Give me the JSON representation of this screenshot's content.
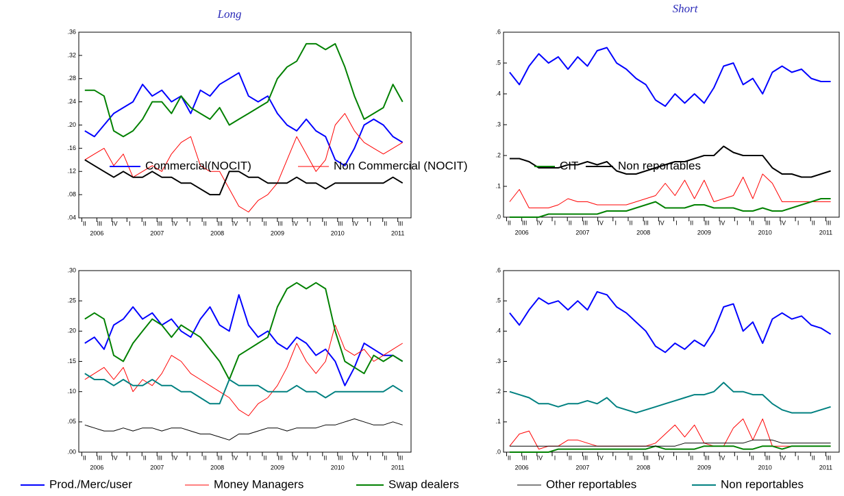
{
  "time_axis": {
    "x": [
      2006.3,
      2006.46,
      2006.62,
      2006.78,
      2006.94,
      2007.1,
      2007.26,
      2007.42,
      2007.58,
      2007.74,
      2007.9,
      2008.06,
      2008.22,
      2008.38,
      2008.54,
      2008.7,
      2008.86,
      2009.02,
      2009.18,
      2009.34,
      2009.5,
      2009.66,
      2009.82,
      2009.98,
      2010.14,
      2010.3,
      2010.46,
      2010.62,
      2010.78,
      2010.94,
      2011.1,
      2011.26,
      2011.42,
      2011.58
    ],
    "xlim": [
      2006.2,
      2011.72
    ],
    "xticks": [
      {
        "value": 2006.25,
        "label": "II"
      },
      {
        "value": 2006.5,
        "label": "III"
      },
      {
        "value": 2006.75,
        "label": "IV"
      },
      {
        "value": 2007,
        "label": "I"
      },
      {
        "value": 2007.25,
        "label": "II"
      },
      {
        "value": 2007.5,
        "label": "III"
      },
      {
        "value": 2007.75,
        "label": "IV"
      },
      {
        "value": 2008,
        "label": "I"
      },
      {
        "value": 2008.25,
        "label": "II"
      },
      {
        "value": 2008.5,
        "label": "III"
      },
      {
        "value": 2008.75,
        "label": "IV"
      },
      {
        "value": 2009,
        "label": "I"
      },
      {
        "value": 2009.25,
        "label": "II"
      },
      {
        "value": 2009.5,
        "label": "III"
      },
      {
        "value": 2009.75,
        "label": "IV"
      },
      {
        "value": 2010,
        "label": "I"
      },
      {
        "value": 2010.25,
        "label": "II"
      },
      {
        "value": 2010.5,
        "label": "III"
      },
      {
        "value": 2010.75,
        "label": "IV"
      },
      {
        "value": 2011,
        "label": "I"
      },
      {
        "value": 2011.25,
        "label": "II"
      },
      {
        "value": 2011.5,
        "label": "III"
      }
    ],
    "years": [
      2006,
      2007,
      2008,
      2009,
      2010,
      2011
    ]
  },
  "chart_data": [
    {
      "type": "line",
      "subtitle": "Long",
      "ylim": [
        0.04,
        0.36
      ],
      "yticks": [
        {
          "value": 0.04,
          "label": ".04"
        },
        {
          "value": 0.08,
          "label": ".08"
        },
        {
          "value": 0.12,
          "label": ".12"
        },
        {
          "value": 0.16,
          "label": ".16"
        },
        {
          "value": 0.2,
          "label": ".20"
        },
        {
          "value": 0.24,
          "label": ".24"
        },
        {
          "value": 0.28,
          "label": ".28"
        },
        {
          "value": 0.32,
          "label": ".32"
        },
        {
          "value": 0.36,
          "label": ".36"
        }
      ],
      "series": [
        {
          "name": "Commercial(NOCIT)",
          "color": "#0000ff",
          "line_width": 2,
          "values": [
            0.19,
            0.18,
            0.2,
            0.22,
            0.23,
            0.24,
            0.27,
            0.25,
            0.26,
            0.24,
            0.25,
            0.22,
            0.26,
            0.25,
            0.27,
            0.28,
            0.29,
            0.25,
            0.24,
            0.25,
            0.22,
            0.2,
            0.19,
            0.21,
            0.19,
            0.18,
            0.14,
            0.13,
            0.16,
            0.2,
            0.21,
            0.2,
            0.18,
            0.17
          ]
        },
        {
          "name": "Non Commercial (NOCIT)",
          "color": "#ff0000",
          "line_width": 1,
          "values": [
            0.14,
            0.15,
            0.16,
            0.13,
            0.15,
            0.11,
            0.12,
            0.13,
            0.12,
            0.15,
            0.17,
            0.18,
            0.13,
            0.12,
            0.12,
            0.09,
            0.06,
            0.05,
            0.07,
            0.08,
            0.1,
            0.14,
            0.18,
            0.15,
            0.12,
            0.14,
            0.2,
            0.22,
            0.19,
            0.17,
            0.16,
            0.15,
            0.16,
            0.17
          ]
        },
        {
          "name": "CIT",
          "color": "#008000",
          "line_width": 2,
          "values": [
            0.26,
            0.26,
            0.25,
            0.19,
            0.18,
            0.19,
            0.21,
            0.24,
            0.24,
            0.22,
            0.25,
            0.23,
            0.22,
            0.21,
            0.23,
            0.2,
            0.21,
            0.22,
            0.23,
            0.24,
            0.28,
            0.3,
            0.31,
            0.34,
            0.34,
            0.33,
            0.34,
            0.3,
            0.25,
            0.21,
            0.22,
            0.23,
            0.27,
            0.24
          ]
        },
        {
          "name": "Non reportables",
          "color": "#000000",
          "line_width": 2,
          "values": [
            0.14,
            0.13,
            0.12,
            0.11,
            0.12,
            0.11,
            0.11,
            0.12,
            0.11,
            0.11,
            0.1,
            0.1,
            0.09,
            0.08,
            0.08,
            0.12,
            0.12,
            0.11,
            0.11,
            0.1,
            0.1,
            0.1,
            0.11,
            0.1,
            0.1,
            0.09,
            0.1,
            0.1,
            0.1,
            0.1,
            0.1,
            0.1,
            0.11,
            0.1
          ]
        }
      ]
    },
    {
      "type": "line",
      "subtitle": "Short",
      "ylim": [
        0,
        0.6
      ],
      "yticks": [
        {
          "value": 0,
          "label": ".0"
        },
        {
          "value": 0.1,
          "label": ".1"
        },
        {
          "value": 0.2,
          "label": ".2"
        },
        {
          "value": 0.3,
          "label": ".3"
        },
        {
          "value": 0.4,
          "label": ".4"
        },
        {
          "value": 0.5,
          "label": ".5"
        },
        {
          "value": 0.6,
          "label": ".6"
        }
      ],
      "series": [
        {
          "color": "#0000ff",
          "line_width": 2,
          "values": [
            0.47,
            0.43,
            0.49,
            0.53,
            0.5,
            0.52,
            0.48,
            0.52,
            0.49,
            0.54,
            0.55,
            0.5,
            0.48,
            0.45,
            0.43,
            0.38,
            0.36,
            0.4,
            0.37,
            0.4,
            0.37,
            0.42,
            0.49,
            0.5,
            0.43,
            0.45,
            0.4,
            0.47,
            0.49,
            0.47,
            0.48,
            0.45,
            0.44,
            0.44
          ]
        },
        {
          "color": "#ff0000",
          "line_width": 1,
          "values": [
            0.05,
            0.09,
            0.03,
            0.03,
            0.03,
            0.04,
            0.06,
            0.05,
            0.05,
            0.04,
            0.04,
            0.04,
            0.04,
            0.05,
            0.06,
            0.07,
            0.11,
            0.07,
            0.12,
            0.06,
            0.12,
            0.05,
            0.06,
            0.07,
            0.13,
            0.06,
            0.14,
            0.11,
            0.05,
            0.05,
            0.05,
            0.05,
            0.05,
            0.05
          ]
        },
        {
          "color": "#008000",
          "line_width": 2,
          "values": [
            0,
            0,
            0,
            0,
            0.01,
            0.01,
            0.01,
            0.01,
            0.01,
            0.01,
            0.02,
            0.02,
            0.02,
            0.03,
            0.04,
            0.05,
            0.03,
            0.03,
            0.03,
            0.04,
            0.04,
            0.03,
            0.03,
            0.03,
            0.02,
            0.02,
            0.03,
            0.02,
            0.02,
            0.03,
            0.04,
            0.05,
            0.06,
            0.06
          ]
        },
        {
          "color": "#000000",
          "line_width": 2,
          "values": [
            0.19,
            0.19,
            0.18,
            0.16,
            0.16,
            0.16,
            0.17,
            0.17,
            0.18,
            0.17,
            0.18,
            0.15,
            0.14,
            0.14,
            0.15,
            0.16,
            0.17,
            0.18,
            0.18,
            0.19,
            0.2,
            0.2,
            0.23,
            0.21,
            0.2,
            0.2,
            0.2,
            0.16,
            0.14,
            0.14,
            0.13,
            0.13,
            0.14,
            0.15
          ]
        }
      ]
    },
    {
      "type": "line",
      "ylim": [
        0,
        0.3
      ],
      "yticks": [
        {
          "value": 0,
          "label": ".00"
        },
        {
          "value": 0.05,
          "label": ".05"
        },
        {
          "value": 0.1,
          "label": ".10"
        },
        {
          "value": 0.15,
          "label": ".15"
        },
        {
          "value": 0.2,
          "label": ".20"
        },
        {
          "value": 0.25,
          "label": ".25"
        },
        {
          "value": 0.3,
          "label": ".30"
        }
      ],
      "series": [
        {
          "name": "Prod./Merc/user",
          "color": "#0000ff",
          "line_width": 2,
          "values": [
            0.18,
            0.19,
            0.17,
            0.21,
            0.22,
            0.24,
            0.22,
            0.23,
            0.21,
            0.22,
            0.2,
            0.19,
            0.22,
            0.24,
            0.21,
            0.2,
            0.26,
            0.21,
            0.19,
            0.2,
            0.18,
            0.17,
            0.19,
            0.18,
            0.16,
            0.17,
            0.15,
            0.11,
            0.14,
            0.18,
            0.17,
            0.16,
            0.16,
            0.15
          ]
        },
        {
          "name": "Money Managers",
          "color": "#ff0000",
          "line_width": 1,
          "values": [
            0.12,
            0.13,
            0.14,
            0.12,
            0.14,
            0.1,
            0.12,
            0.11,
            0.13,
            0.16,
            0.15,
            0.13,
            0.12,
            0.11,
            0.1,
            0.09,
            0.07,
            0.06,
            0.08,
            0.09,
            0.11,
            0.14,
            0.18,
            0.15,
            0.13,
            0.15,
            0.21,
            0.17,
            0.16,
            0.17,
            0.15,
            0.16,
            0.17,
            0.18
          ]
        },
        {
          "name": "Swap dealers",
          "color": "#008000",
          "line_width": 2,
          "values": [
            0.22,
            0.23,
            0.22,
            0.16,
            0.15,
            0.18,
            0.2,
            0.22,
            0.21,
            0.19,
            0.21,
            0.2,
            0.19,
            0.17,
            0.15,
            0.12,
            0.16,
            0.17,
            0.18,
            0.19,
            0.24,
            0.27,
            0.28,
            0.27,
            0.28,
            0.27,
            0.2,
            0.15,
            0.14,
            0.13,
            0.16,
            0.15,
            0.16,
            0.15
          ]
        },
        {
          "name": "Other reportables",
          "color": "#000000",
          "line_width": 1,
          "values": [
            0.045,
            0.04,
            0.035,
            0.035,
            0.04,
            0.035,
            0.04,
            0.04,
            0.035,
            0.04,
            0.04,
            0.035,
            0.03,
            0.03,
            0.025,
            0.02,
            0.03,
            0.03,
            0.035,
            0.04,
            0.04,
            0.035,
            0.04,
            0.04,
            0.04,
            0.045,
            0.045,
            0.05,
            0.055,
            0.05,
            0.045,
            0.045,
            0.05,
            0.045
          ]
        },
        {
          "name": "Non reportables",
          "color": "#008080",
          "line_width": 2,
          "values": [
            0.13,
            0.12,
            0.12,
            0.11,
            0.12,
            0.11,
            0.11,
            0.12,
            0.11,
            0.11,
            0.1,
            0.1,
            0.09,
            0.08,
            0.08,
            0.12,
            0.11,
            0.11,
            0.11,
            0.1,
            0.1,
            0.1,
            0.11,
            0.1,
            0.1,
            0.09,
            0.1,
            0.1,
            0.1,
            0.1,
            0.1,
            0.1,
            0.11,
            0.1
          ]
        }
      ]
    },
    {
      "type": "line",
      "ylim": [
        0,
        0.6
      ],
      "yticks": [
        {
          "value": 0,
          "label": ".0"
        },
        {
          "value": 0.1,
          "label": ".1"
        },
        {
          "value": 0.2,
          "label": ".2"
        },
        {
          "value": 0.3,
          "label": ".3"
        },
        {
          "value": 0.4,
          "label": ".4"
        },
        {
          "value": 0.5,
          "label": ".5"
        },
        {
          "value": 0.6,
          "label": ".6"
        }
      ],
      "series": [
        {
          "color": "#0000ff",
          "line_width": 2,
          "values": [
            0.46,
            0.42,
            0.47,
            0.51,
            0.49,
            0.5,
            0.47,
            0.5,
            0.47,
            0.53,
            0.52,
            0.48,
            0.46,
            0.43,
            0.4,
            0.35,
            0.33,
            0.36,
            0.34,
            0.37,
            0.35,
            0.4,
            0.48,
            0.49,
            0.4,
            0.43,
            0.36,
            0.44,
            0.46,
            0.44,
            0.45,
            0.42,
            0.41,
            0.39
          ]
        },
        {
          "color": "#ff0000",
          "line_width": 1,
          "values": [
            0.02,
            0.06,
            0.07,
            0.01,
            0.02,
            0.02,
            0.04,
            0.04,
            0.03,
            0.02,
            0.02,
            0.02,
            0.02,
            0.02,
            0.02,
            0.03,
            0.06,
            0.09,
            0.05,
            0.09,
            0.03,
            0.02,
            0.02,
            0.08,
            0.11,
            0.04,
            0.11,
            0.02,
            0.02,
            0.02,
            0.02,
            0.02,
            0.02,
            0.02
          ]
        },
        {
          "color": "#008000",
          "line_width": 2,
          "values": [
            0,
            0,
            0,
            0,
            0,
            0.01,
            0.01,
            0.01,
            0.01,
            0.01,
            0.01,
            0.01,
            0.01,
            0.01,
            0.01,
            0.02,
            0.01,
            0.01,
            0.01,
            0.01,
            0.02,
            0.02,
            0.02,
            0.02,
            0.01,
            0.01,
            0.02,
            0.02,
            0.01,
            0.02,
            0.02,
            0.02,
            0.02,
            0.02
          ]
        },
        {
          "color": "#000000",
          "line_width": 1,
          "values": [
            0.02,
            0.02,
            0.02,
            0.02,
            0.02,
            0.02,
            0.02,
            0.02,
            0.02,
            0.02,
            0.02,
            0.02,
            0.02,
            0.02,
            0.02,
            0.02,
            0.02,
            0.02,
            0.03,
            0.03,
            0.03,
            0.03,
            0.03,
            0.03,
            0.03,
            0.04,
            0.04,
            0.04,
            0.03,
            0.03,
            0.03,
            0.03,
            0.03,
            0.03
          ]
        },
        {
          "color": "#008080",
          "line_width": 2,
          "values": [
            0.2,
            0.19,
            0.18,
            0.16,
            0.16,
            0.15,
            0.16,
            0.16,
            0.17,
            0.16,
            0.18,
            0.15,
            0.14,
            0.13,
            0.14,
            0.15,
            0.16,
            0.17,
            0.18,
            0.19,
            0.19,
            0.2,
            0.23,
            0.2,
            0.2,
            0.19,
            0.19,
            0.16,
            0.14,
            0.13,
            0.13,
            0.13,
            0.14,
            0.15
          ]
        }
      ]
    }
  ]
}
